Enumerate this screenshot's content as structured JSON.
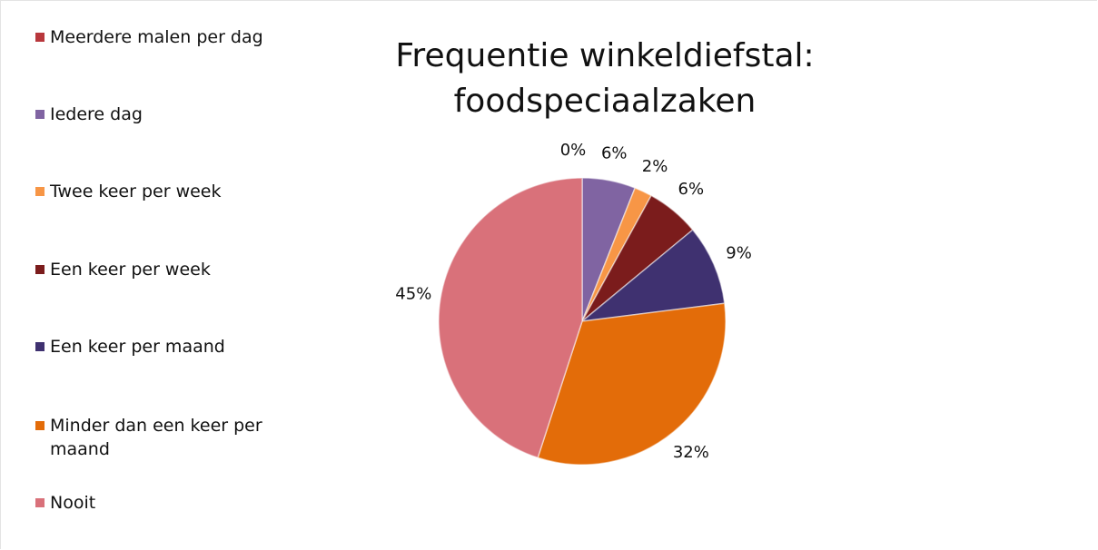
{
  "chart_data": {
    "type": "pie",
    "title": "Frequentie winkeldiefstal: foodspeciaalzaken",
    "categories": [
      "Meerdere malen per dag",
      "Iedere dag",
      "Twee keer per week",
      "Een keer per week",
      "Een keer per maand",
      "Minder dan een keer per maand",
      "Nooit"
    ],
    "values": [
      0,
      6,
      2,
      6,
      9,
      32,
      45
    ],
    "value_labels": [
      "0%",
      "6%",
      "2%",
      "6%",
      "9%",
      "32%",
      "45%"
    ],
    "colors": [
      "#b8373c",
      "#8064a2",
      "#f79646",
      "#7b1c1c",
      "#3f3170",
      "#e36c09",
      "#d9717a"
    ],
    "legend": "left"
  }
}
